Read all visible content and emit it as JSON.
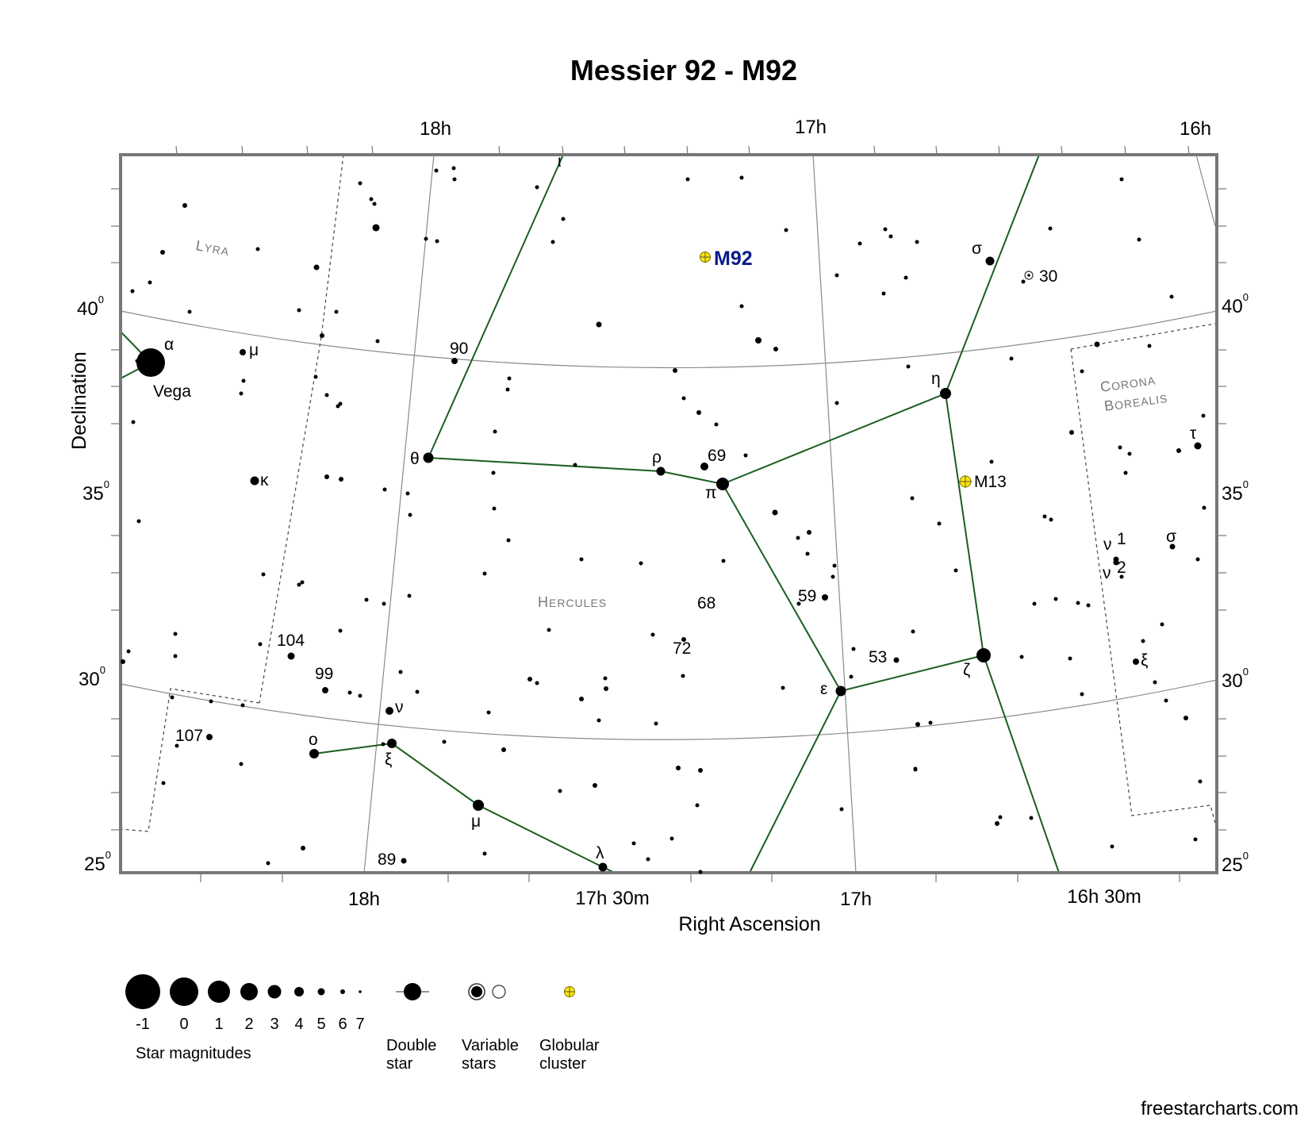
{
  "title": "Messier 92 - M92",
  "credit": "freestarcharts.com",
  "chart_data": {
    "type": "star_map",
    "xlabel": "Right Ascension",
    "ylabel": "Declination",
    "ra_top_ticks": [
      "18h",
      "17h",
      "16h"
    ],
    "ra_bottom_ticks": [
      "18h",
      "17h 30m",
      "17h",
      "16h 30m"
    ],
    "dec_ticks": [
      "40",
      "35",
      "30",
      "25"
    ],
    "degree_symbol": "0",
    "constellations": [
      "Lyra",
      "Hercules",
      "Corona",
      "Borealis"
    ],
    "featured_object": {
      "name": "M92",
      "type": "Globular cluster"
    },
    "other_objects": [
      {
        "name": "M13",
        "type": "Globular cluster"
      }
    ],
    "named_stars": [
      "Vega"
    ],
    "star_labels": [
      "α",
      "μ",
      "κ",
      "90",
      "ι",
      "θ",
      "ρ",
      "69",
      "π",
      "σ",
      "30",
      "η",
      "τ",
      "ν",
      "1",
      "ν",
      "2",
      "σ",
      "59",
      "68",
      "72",
      "104",
      "99",
      "107",
      "ν",
      "ο",
      "ξ",
      "μ",
      "λ",
      "89",
      "53",
      "ε",
      "ζ",
      "ξ"
    ]
  },
  "legend": {
    "magnitudes": [
      "-1",
      "0",
      "1",
      "2",
      "3",
      "4",
      "5",
      "6",
      "7"
    ],
    "magnitudes_caption": "Star magnitudes",
    "double_line1": "Double",
    "double_line2": "star",
    "variable_line1": "Variable",
    "variable_line2": "stars",
    "globular_line1": "Globular",
    "globular_line2": "cluster"
  }
}
